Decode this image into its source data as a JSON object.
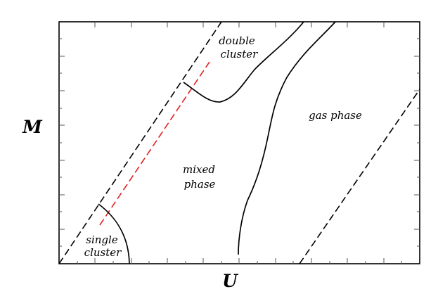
{
  "axes": {
    "x_label": "U",
    "y_label": "M"
  },
  "regions": {
    "double_cluster": {
      "line1": "double",
      "line2": "cluster"
    },
    "single_cluster": {
      "line1": "single",
      "line2": "cluster"
    },
    "mixed_phase": {
      "line1": "mixed",
      "line2": "phase"
    },
    "gas_phase": {
      "text": "gas phase"
    }
  },
  "colors": {
    "boundary": "#000000",
    "dashed_bound": "#000000",
    "red_dashed": "#e0201f",
    "frame": "#000000"
  }
}
